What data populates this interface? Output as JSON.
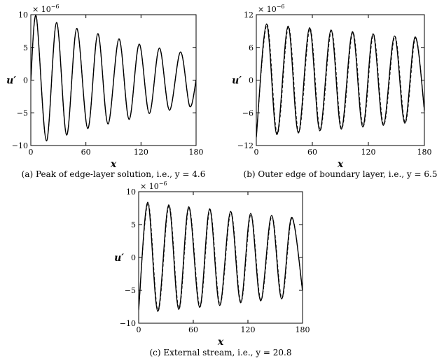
{
  "chart_data": [
    {
      "type": "line",
      "caption": "(a) Peak of edge-layer solution, i.e., y = 4.6",
      "xlabel": "x",
      "ylabel": "u′",
      "scale_label": "× 10",
      "scale_exponent": "−6",
      "xlim": [
        0,
        180
      ],
      "ylim": [
        -10,
        10
      ],
      "xticks": [
        "0",
        "60",
        "120",
        "180"
      ],
      "yticks": [
        "10",
        "5",
        "0",
        "−5",
        "−10"
      ],
      "series": [
        {
          "style": "solid",
          "x": [
            0,
            6,
            17,
            28,
            39,
            50,
            62,
            73,
            84,
            96,
            107,
            118,
            129,
            140,
            151,
            163,
            173,
            180
          ],
          "values": [
            0,
            9.7,
            -9.3,
            8.8,
            -8.4,
            7.9,
            -7.4,
            7.1,
            -6.7,
            6.3,
            -6.0,
            5.5,
            -5.1,
            4.9,
            -4.6,
            4.3,
            -4.0,
            0
          ]
        },
        {
          "style": "dashed",
          "x": [
            0,
            6,
            17,
            28,
            39,
            50,
            62,
            73,
            84,
            96,
            107,
            118,
            129,
            140,
            151,
            163,
            173,
            180
          ],
          "values": [
            0,
            9.7,
            -9.3,
            8.8,
            -8.4,
            7.9,
            -7.4,
            7.1,
            -6.7,
            6.3,
            -6.0,
            5.5,
            -5.1,
            4.9,
            -4.6,
            4.3,
            -4.0,
            0
          ]
        }
      ]
    },
    {
      "type": "line",
      "caption": "(b) Outer edge of boundary layer, i.e., y = 6.5",
      "xlabel": "x",
      "ylabel": "u′",
      "scale_label": "× 10",
      "scale_exponent": "−6",
      "xlim": [
        0,
        180
      ],
      "ylim": [
        -12,
        12
      ],
      "xticks": [
        "0",
        "60",
        "120",
        "180"
      ],
      "yticks": [
        "12",
        "6",
        "0",
        "−6",
        "−12"
      ],
      "series": [
        {
          "style": "solid",
          "x": [
            0,
            11,
            22,
            34,
            45,
            57,
            68,
            80,
            91,
            103,
            114,
            125,
            136,
            148,
            159,
            170,
            180
          ],
          "values": [
            -10.5,
            10.3,
            -10.0,
            9.9,
            -9.7,
            9.6,
            -9.3,
            9.2,
            -9.0,
            8.9,
            -8.6,
            8.5,
            -8.3,
            8.1,
            -7.9,
            7.9,
            -5.5
          ]
        },
        {
          "style": "dashed",
          "x": [
            0,
            11.5,
            22.5,
            34.5,
            45.5,
            57.5,
            68.5,
            80.5,
            91.5,
            103.5,
            114.5,
            125.5,
            136.5,
            148.5,
            159.5,
            170.5,
            180
          ],
          "values": [
            -10.3,
            10.2,
            -9.9,
            9.8,
            -9.6,
            9.5,
            -9.2,
            9.1,
            -8.9,
            8.8,
            -8.5,
            8.4,
            -8.2,
            8.0,
            -7.8,
            7.8,
            -5.8
          ]
        }
      ]
    },
    {
      "type": "line",
      "caption": "(c) External stream, i.e., y = 20.8",
      "xlabel": "x",
      "ylabel": "u′",
      "scale_label": "× 10",
      "scale_exponent": "−6",
      "xlim": [
        0,
        180
      ],
      "ylim": [
        -10,
        10
      ],
      "xticks": [
        "0",
        "60",
        "120",
        "180"
      ],
      "yticks": [
        "10",
        "5",
        "0",
        "−5",
        "−10"
      ],
      "series": [
        {
          "style": "solid",
          "x": [
            0,
            10,
            21,
            33,
            44,
            55,
            67,
            78,
            89,
            101,
            112,
            123,
            134,
            146,
            157,
            168,
            180
          ],
          "values": [
            -8.0,
            8.4,
            -8.2,
            8.0,
            -7.9,
            7.7,
            -7.6,
            7.4,
            -7.3,
            7.0,
            -6.9,
            6.7,
            -6.6,
            6.4,
            -6.3,
            6.1,
            -5.0
          ]
        },
        {
          "style": "dashed",
          "x": [
            0,
            10.4,
            21.4,
            33.4,
            44.4,
            55.4,
            67.4,
            78.4,
            89.4,
            101.4,
            112.4,
            123.4,
            134.4,
            146.4,
            157.4,
            168.4,
            180
          ],
          "values": [
            -7.8,
            8.3,
            -8.1,
            7.9,
            -7.8,
            7.6,
            -7.5,
            7.3,
            -7.2,
            6.9,
            -6.8,
            6.6,
            -6.5,
            6.3,
            -6.2,
            6.0,
            -5.2
          ]
        }
      ]
    }
  ]
}
